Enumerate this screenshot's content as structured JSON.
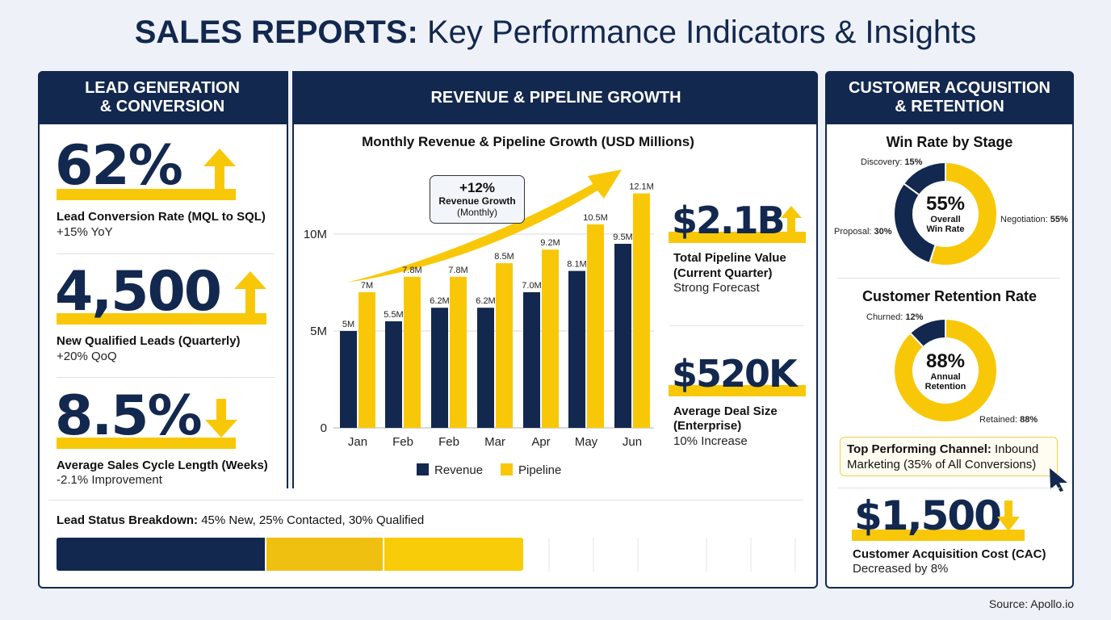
{
  "title": {
    "bold": "SALES REPORTS:",
    "rest": " Key Performance Indicators & Insights"
  },
  "colors": {
    "navy": "#13284f",
    "yellow": "#f8c808",
    "background": "#eef2f8"
  },
  "lead_panel": {
    "header_line1": "LEAD GENERATION",
    "header_line2": "& CONVERSION",
    "kpis": [
      {
        "value": "62%",
        "label": "Lead Conversion Rate (MQL to SQL)",
        "sub": "+15% YoY",
        "trend": "arrow-up-icon"
      },
      {
        "value": "4,500",
        "label": "New Qualified Leads (Quarterly)",
        "sub": "+20% QoQ",
        "trend": "arrow-up-icon"
      },
      {
        "value": "8.5%",
        "label": "Average Sales Cycle Length (Weeks)",
        "sub": "-2.1% Improvement",
        "trend": "arrow-down-icon"
      }
    ]
  },
  "revenue_panel": {
    "header": "REVENUE & PIPELINE GROWTH",
    "callout": {
      "value": "+12%",
      "label": "Revenue Growth",
      "sub": "(Monthly)"
    },
    "kpis": [
      {
        "value": "$2.1B",
        "label1": "Total Pipeline Value",
        "label2": "(Current Quarter)",
        "sub": "Strong Forecast"
      },
      {
        "value": "$520K",
        "label1": "Average Deal Size",
        "label2": "(Enterprise)",
        "sub": "10% Increase"
      }
    ]
  },
  "lead_status": {
    "label_bold": "Lead Status Breakdown:",
    "label_rest": " 45% New, 25% Contacted, 30% Qualified",
    "segments": [
      {
        "name": "New",
        "percent": 45,
        "color": "#13284f"
      },
      {
        "name": "Contacted",
        "percent": 25,
        "color": "#f0c010"
      },
      {
        "name": "Qualified",
        "percent": 30,
        "color": "#f8cc08"
      }
    ]
  },
  "customer_panel": {
    "header_line1": "CUSTOMER ACQUISITION",
    "header_line2": "& RETENTION",
    "callout_bold": "Top Performing Channel:",
    "callout_rest1": " Inbound",
    "callout_rest2": "Marketing (35% of All Conversions)",
    "cac": {
      "value": "$1,500",
      "label": "Customer Acquisition Cost (CAC)",
      "sub": "Decreased by 8%",
      "trend": "arrow-down-icon"
    }
  },
  "source": "Source: Apollo.io",
  "chart_data": [
    {
      "type": "bar",
      "title": "Monthly Revenue & Pipeline Growth (USD Millions)",
      "categories": [
        "Jan",
        "Feb",
        "Feb",
        "Mar",
        "Apr",
        "May",
        "Jun"
      ],
      "series": [
        {
          "name": "Revenue",
          "color": "#13284f",
          "values": [
            5,
            5.5,
            6.2,
            6.2,
            7.0,
            8.1,
            9.5
          ],
          "labels": [
            "5M",
            "5.5M",
            "6.2M",
            "6.2M",
            "7.0M",
            "8.1M",
            "9.5M"
          ]
        },
        {
          "name": "Pipeline",
          "color": "#f8c808",
          "values": [
            7,
            7.8,
            7.8,
            8.5,
            9.2,
            10.5,
            12.1
          ],
          "labels": [
            "7M",
            "7.8M",
            "7.8M",
            "8.5M",
            "9.2M",
            "10.5M",
            "12.1M"
          ]
        }
      ],
      "yticks": [
        "0",
        "5M",
        "10M"
      ],
      "ytick_values": [
        0,
        5,
        10
      ],
      "ylim": [
        0,
        12.5
      ],
      "grid": true,
      "legend": "bottom"
    },
    {
      "type": "pie",
      "title": "Win Rate by Stage",
      "center_value": "55%",
      "center_label1": "Overall",
      "center_label2": "Win Rate",
      "slices": [
        {
          "name": "Negotiation",
          "value": 55,
          "label": "55%",
          "color": "#f8c808"
        },
        {
          "name": "Proposal",
          "value": 30,
          "label": "30%",
          "color": "#13284f"
        },
        {
          "name": "Discovery",
          "value": 15,
          "label": "15%",
          "color": "#13284f"
        }
      ]
    },
    {
      "type": "pie",
      "title": "Customer Retention Rate",
      "center_value": "88%",
      "center_label1": "Annual",
      "center_label2": "Retention",
      "slices": [
        {
          "name": "Retained",
          "value": 88,
          "label": "88%",
          "color": "#f8c808"
        },
        {
          "name": "Churned",
          "value": 12,
          "label": "12%",
          "color": "#13284f"
        }
      ]
    }
  ]
}
